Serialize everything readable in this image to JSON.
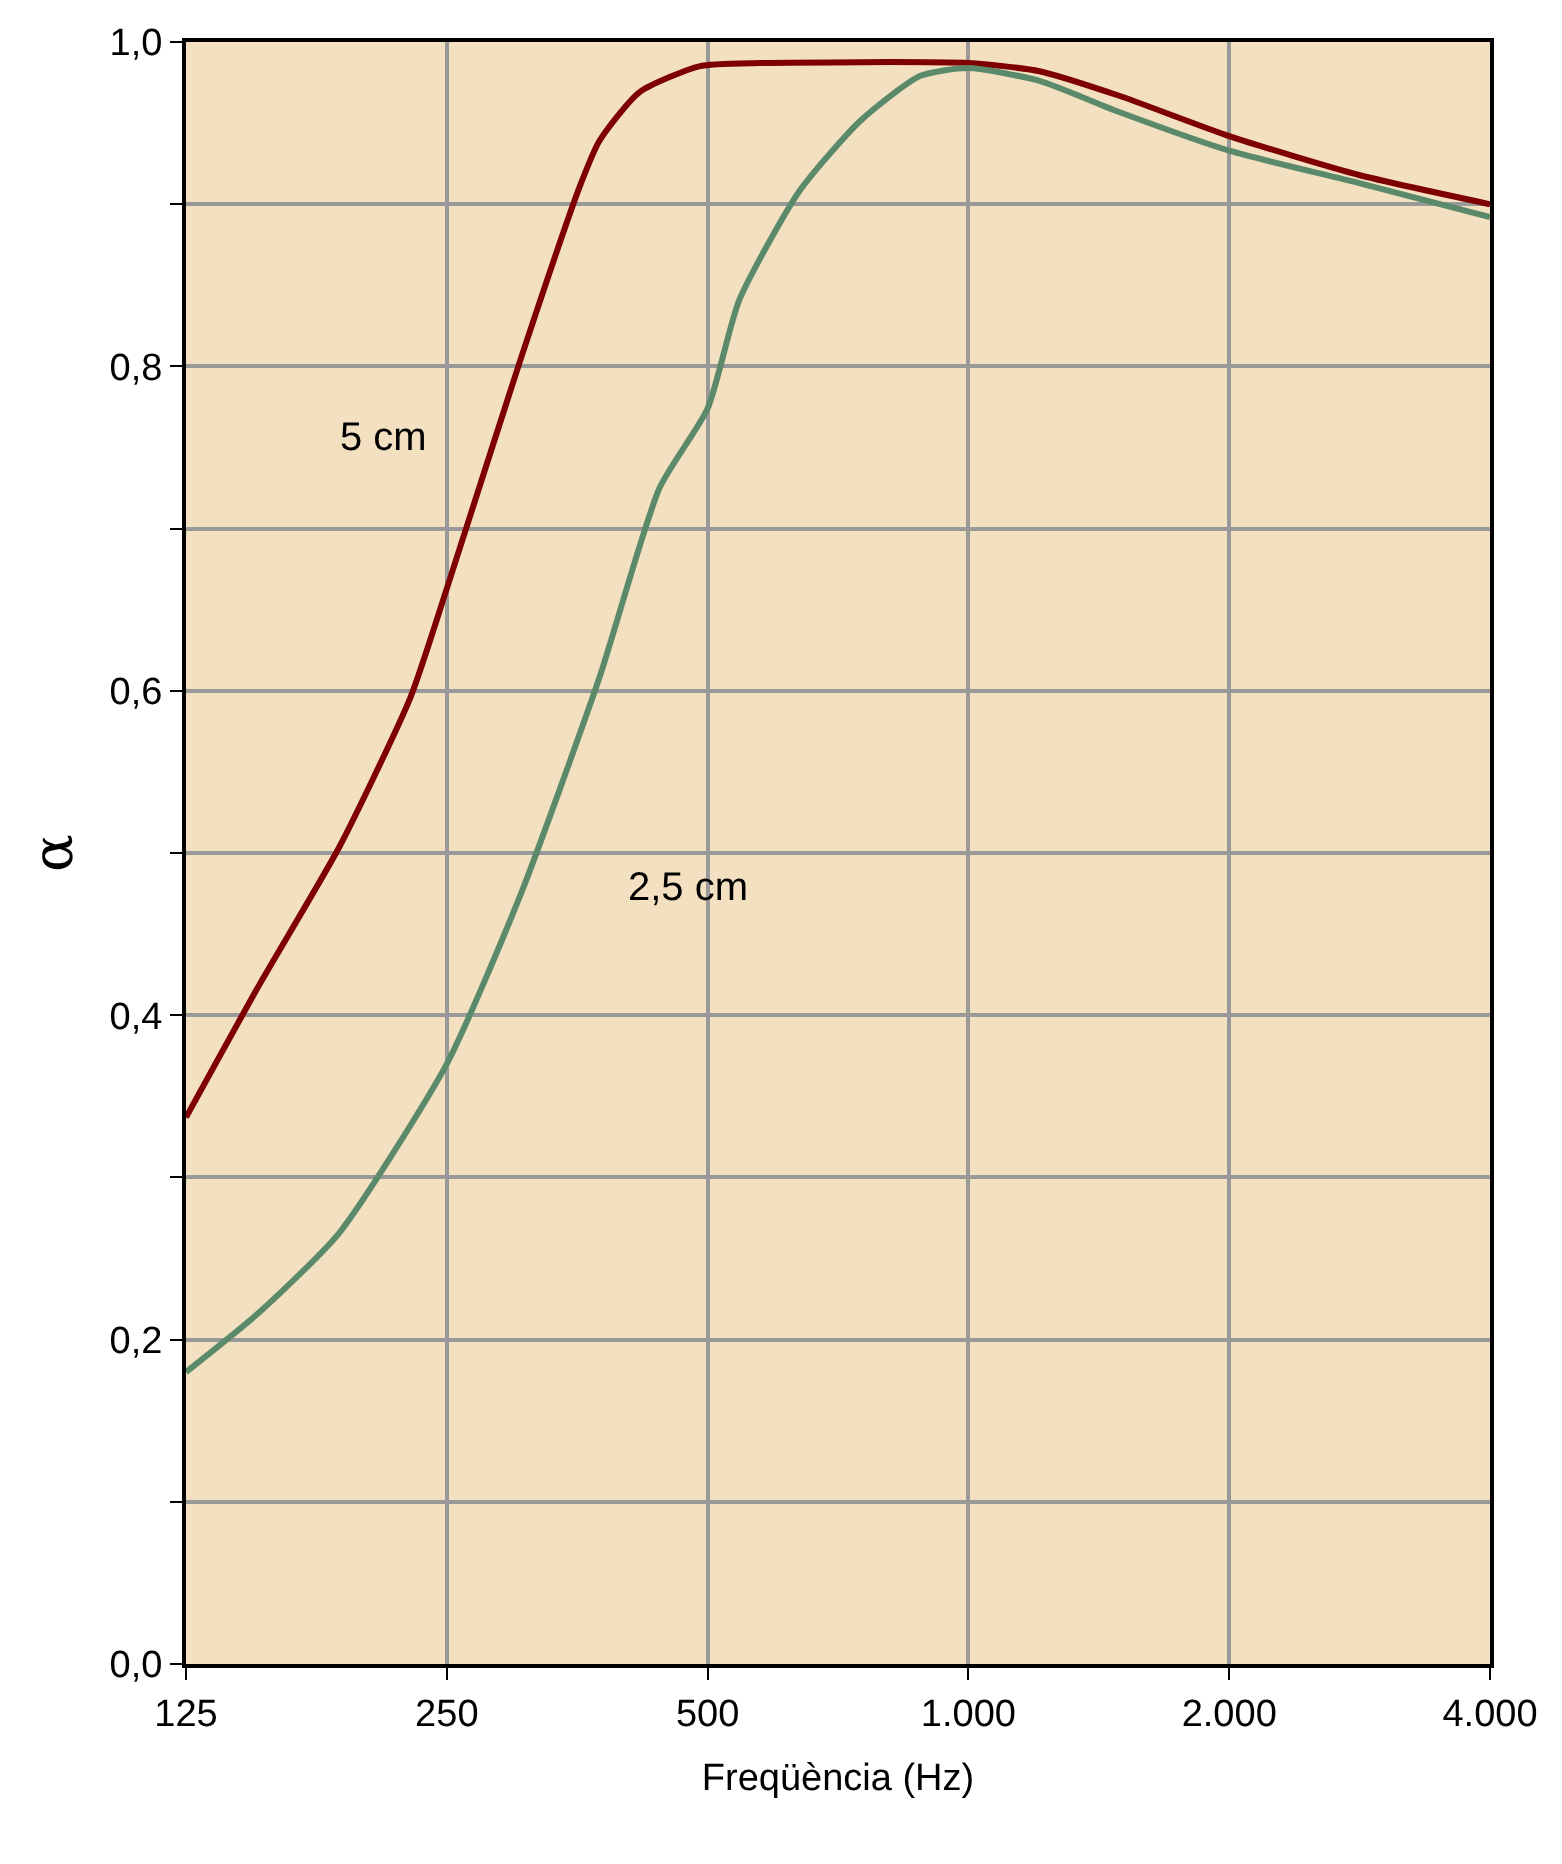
{
  "chart_data": {
    "type": "line",
    "xlabel": "Freqüència (Hz)",
    "ylabel": "α",
    "log": "x",
    "grid": true,
    "marker": "none",
    "line_style": "solid",
    "xlim": [
      125,
      4000
    ],
    "xticks": [
      {
        "value": 125,
        "label": "125"
      },
      {
        "value": 250,
        "label": "250"
      },
      {
        "value": 500,
        "label": "500"
      },
      {
        "value": 1000,
        "label": "1.000"
      },
      {
        "value": 2000,
        "label": "2.000"
      },
      {
        "value": 4000,
        "label": "4.000"
      }
    ],
    "ylim": [
      0,
      1.0
    ],
    "yticks": [
      {
        "value": 0,
        "label": "0,0"
      },
      {
        "value": 0.1,
        "label": null
      },
      {
        "value": 0.2,
        "label": "0,2"
      },
      {
        "value": 0.3,
        "label": null
      },
      {
        "value": 0.4,
        "label": "0,4"
      },
      {
        "value": 0.5,
        "label": null
      },
      {
        "value": 0.6,
        "label": "0,6"
      },
      {
        "value": 0.7,
        "label": null
      },
      {
        "value": 0.8,
        "label": "0,8"
      },
      {
        "value": 0.9,
        "label": null
      },
      {
        "value": 1.0,
        "label": "1,0"
      }
    ],
    "series": [
      {
        "name": "5 cm",
        "color": "#7f0000",
        "x": [
          125,
          152,
          188,
          227,
          250,
          304,
          356,
          375,
          417,
          489,
          575,
          1000,
          1208,
          1490,
          2000,
          2825,
          4000
        ],
        "values": [
          0.337,
          0.419,
          0.504,
          0.596,
          0.663,
          0.804,
          0.911,
          0.939,
          0.969,
          0.985,
          0.987,
          0.987,
          0.982,
          0.967,
          0.942,
          0.918,
          0.9
        ]
      },
      {
        "name": "2,5 cm",
        "color": "#5a8a6a",
        "x": [
          125,
          152,
          188,
          250,
          304,
          375,
          440,
          500,
          544,
          638,
          749,
          879,
          1000,
          1208,
          1490,
          2000,
          2825,
          4000
        ],
        "values": [
          0.18,
          0.217,
          0.266,
          0.37,
          0.474,
          0.608,
          0.725,
          0.774,
          0.841,
          0.908,
          0.951,
          0.979,
          0.984,
          0.976,
          0.957,
          0.933,
          0.913,
          0.892
        ]
      }
    ]
  }
}
